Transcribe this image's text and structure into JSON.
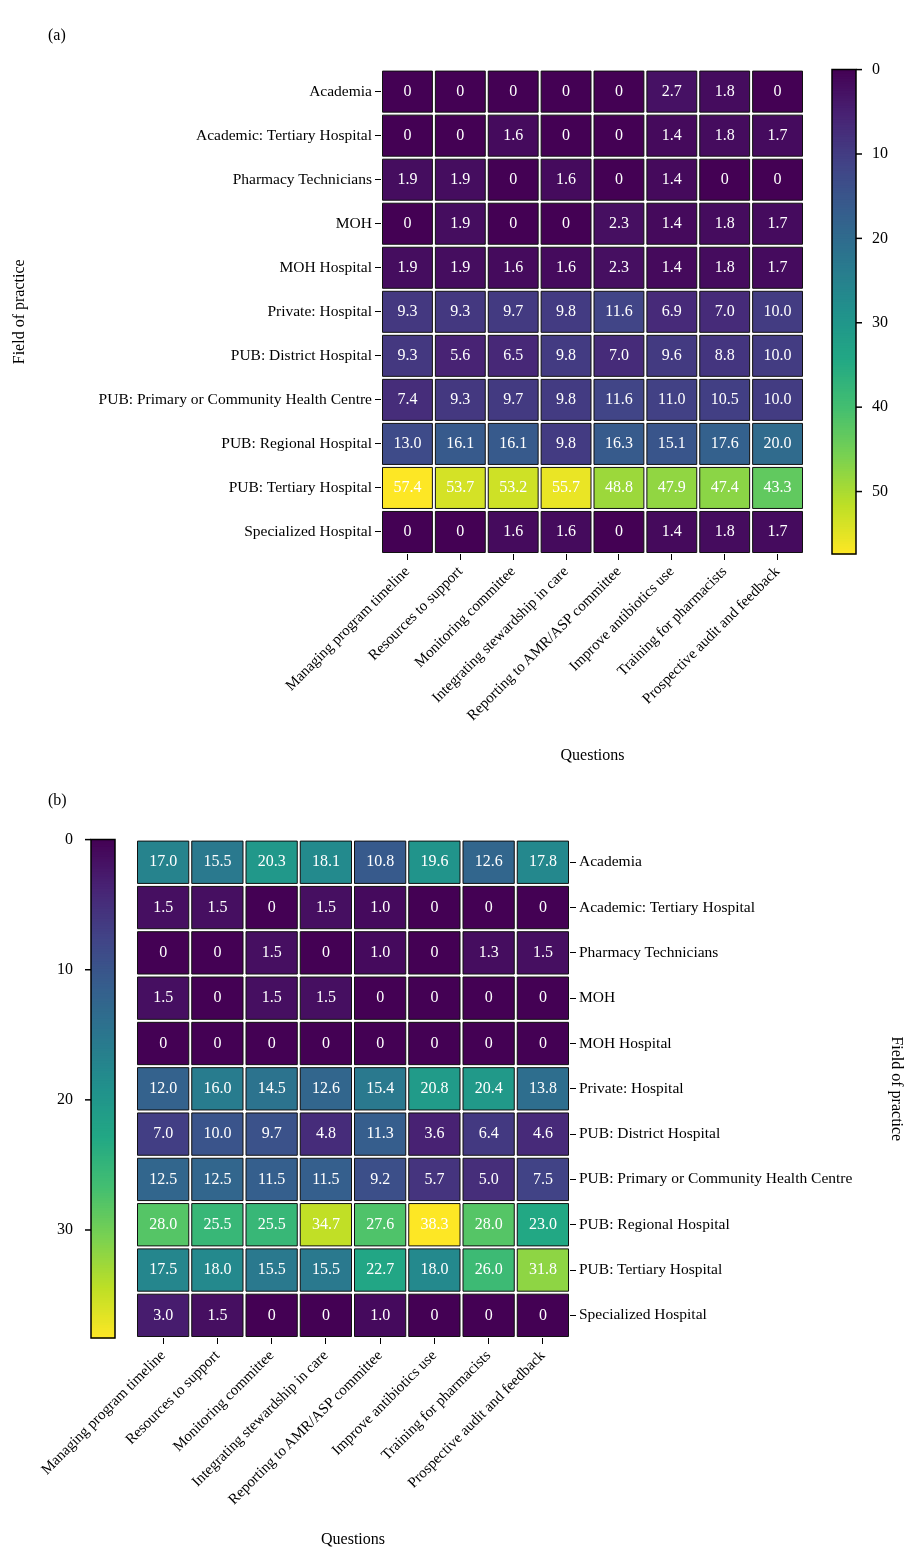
{
  "chart_data": [
    {
      "type": "heatmap",
      "title": "(a)",
      "xlabel": "Questions",
      "ylabel": "Field of practice",
      "categories": [
        "Managing program timeline",
        "Resources to support",
        "Monitoring committee",
        "Integrating stewardship in care",
        "Reporting to AMR/ASP committee",
        "Improve antibiotics use",
        "Training for pharmacists",
        "Prospective audit and feedback"
      ],
      "y_categories": [
        "Academia",
        "Academic: Tertiary Hospital",
        "Pharmacy Technicians",
        "MOH",
        "MOH Hospital",
        "Private: Hospital",
        "PUB: District Hospital",
        "PUB: Primary or Community Health Centre",
        "PUB: Regional Hospital",
        "PUB: Tertiary Hospital",
        "Specialized Hospital"
      ],
      "cells": [
        [
          0,
          0,
          0,
          0,
          0,
          2.7,
          1.8,
          0
        ],
        [
          0,
          0,
          1.6,
          0,
          0,
          1.4,
          1.8,
          1.7
        ],
        [
          1.9,
          1.9,
          0,
          1.6,
          0,
          1.4,
          0,
          0
        ],
        [
          0,
          1.9,
          0,
          0,
          2.3,
          1.4,
          1.8,
          1.7
        ],
        [
          1.9,
          1.9,
          1.6,
          1.6,
          2.3,
          1.4,
          1.8,
          1.7
        ],
        [
          9.3,
          9.3,
          9.7,
          9.8,
          11.6,
          6.9,
          7.0,
          10.0
        ],
        [
          9.3,
          5.6,
          6.5,
          9.8,
          7.0,
          9.6,
          8.8,
          10.0
        ],
        [
          7.4,
          9.3,
          9.7,
          9.8,
          11.6,
          11.0,
          10.5,
          10.0
        ],
        [
          13.0,
          16.1,
          16.1,
          9.8,
          16.3,
          15.1,
          17.6,
          20.0
        ],
        [
          57.4,
          53.7,
          53.2,
          55.7,
          48.8,
          47.9,
          47.4,
          43.3
        ],
        [
          0,
          0,
          1.6,
          1.6,
          0,
          1.4,
          1.8,
          1.7
        ]
      ],
      "cell_labels": [
        [
          "0",
          "0",
          "0",
          "0",
          "0",
          "2.7",
          "1.8",
          "0"
        ],
        [
          "0",
          "0",
          "1.6",
          "0",
          "0",
          "1.4",
          "1.8",
          "1.7"
        ],
        [
          "1.9",
          "1.9",
          "0",
          "1.6",
          "0",
          "1.4",
          "0",
          "0"
        ],
        [
          "0",
          "1.9",
          "0",
          "0",
          "2.3",
          "1.4",
          "1.8",
          "1.7"
        ],
        [
          "1.9",
          "1.9",
          "1.6",
          "1.6",
          "2.3",
          "1.4",
          "1.8",
          "1.7"
        ],
        [
          "9.3",
          "9.3",
          "9.7",
          "9.8",
          "11.6",
          "6.9",
          "7.0",
          "10.0"
        ],
        [
          "9.3",
          "5.6",
          "6.5",
          "9.8",
          "7.0",
          "9.6",
          "8.8",
          "10.0"
        ],
        [
          "7.4",
          "9.3",
          "9.7",
          "9.8",
          "11.6",
          "11.0",
          "10.5",
          "10.0"
        ],
        [
          "13.0",
          "16.1",
          "16.1",
          "9.8",
          "16.3",
          "15.1",
          "17.6",
          "20.0"
        ],
        [
          "57.4",
          "53.7",
          "53.2",
          "55.7",
          "48.8",
          "47.9",
          "47.4",
          "43.3"
        ],
        [
          "0",
          "0",
          "1.6",
          "1.6",
          "0",
          "1.4",
          "1.8",
          "1.7"
        ]
      ],
      "clim": [
        0,
        57.4
      ],
      "cticks": [
        0,
        10,
        20,
        30,
        40,
        50
      ]
    },
    {
      "type": "heatmap",
      "title": "(b)",
      "xlabel": "Questions",
      "y2label": "Field of practice",
      "categories": [
        "Managing program timeline",
        "Resources to support",
        "Monitoring committee",
        "Integrating stewardship in care",
        "Reporting to AMR/ASP committee",
        "Improve antibiotics use",
        "Training for pharmacists",
        "Prospective audit and feedback"
      ],
      "y_categories": [
        "Academia",
        "Academic: Tertiary Hospital",
        "Pharmacy Technicians",
        "MOH",
        "MOH Hospital",
        "Private: Hospital",
        "PUB: District Hospital",
        "PUB: Primary or Community Health Centre",
        "PUB: Regional Hospital",
        "PUB: Tertiary Hospital",
        "Specialized Hospital"
      ],
      "cells": [
        [
          17.0,
          15.5,
          20.3,
          18.1,
          10.8,
          19.6,
          12.6,
          17.8
        ],
        [
          1.5,
          1.5,
          0,
          1.5,
          1.0,
          0,
          0,
          0
        ],
        [
          0,
          0,
          1.5,
          0,
          1.0,
          0,
          1.3,
          1.5
        ],
        [
          1.5,
          0,
          1.5,
          1.5,
          0,
          0,
          0,
          0
        ],
        [
          0,
          0,
          0,
          0,
          0,
          0,
          0,
          0
        ],
        [
          12.0,
          16.0,
          14.5,
          12.6,
          15.4,
          20.8,
          20.4,
          13.8
        ],
        [
          7.0,
          10.0,
          9.7,
          4.8,
          11.3,
          3.6,
          6.4,
          4.6
        ],
        [
          12.5,
          12.5,
          11.5,
          11.5,
          9.2,
          5.7,
          5.0,
          7.5
        ],
        [
          28.0,
          25.5,
          25.5,
          34.7,
          27.6,
          38.3,
          28.0,
          23.0
        ],
        [
          17.5,
          18.0,
          15.5,
          15.5,
          22.7,
          18.0,
          26.0,
          31.8
        ],
        [
          3.0,
          1.5,
          0,
          0,
          1.0,
          0,
          0,
          0
        ]
      ],
      "cell_labels": [
        [
          "17.0",
          "15.5",
          "20.3",
          "18.1",
          "10.8",
          "19.6",
          "12.6",
          "17.8"
        ],
        [
          "1.5",
          "1.5",
          "0",
          "1.5",
          "1.0",
          "0",
          "0",
          "0"
        ],
        [
          "0",
          "0",
          "1.5",
          "0",
          "1.0",
          "0",
          "1.3",
          "1.5"
        ],
        [
          "1.5",
          "0",
          "1.5",
          "1.5",
          "0",
          "0",
          "0",
          "0"
        ],
        [
          "0",
          "0",
          "0",
          "0",
          "0",
          "0",
          "0",
          "0"
        ],
        [
          "12.0",
          "16.0",
          "14.5",
          "12.6",
          "15.4",
          "20.8",
          "20.4",
          "13.8"
        ],
        [
          "7.0",
          "10.0",
          "9.7",
          "4.8",
          "11.3",
          "3.6",
          "6.4",
          "4.6"
        ],
        [
          "12.5",
          "12.5",
          "11.5",
          "11.5",
          "9.2",
          "5.7",
          "5.0",
          "7.5"
        ],
        [
          "28.0",
          "25.5",
          "25.5",
          "34.7",
          "27.6",
          "38.3",
          "28.0",
          "23.0"
        ],
        [
          "17.5",
          "18.0",
          "15.5",
          "15.5",
          "22.7",
          "18.0",
          "26.0",
          "31.8"
        ],
        [
          "3.0",
          "1.5",
          "0",
          "0",
          "1.0",
          "0",
          "0",
          "0"
        ]
      ],
      "clim": [
        0,
        38.3
      ],
      "cticks": [
        0,
        10,
        20,
        30
      ]
    }
  ]
}
